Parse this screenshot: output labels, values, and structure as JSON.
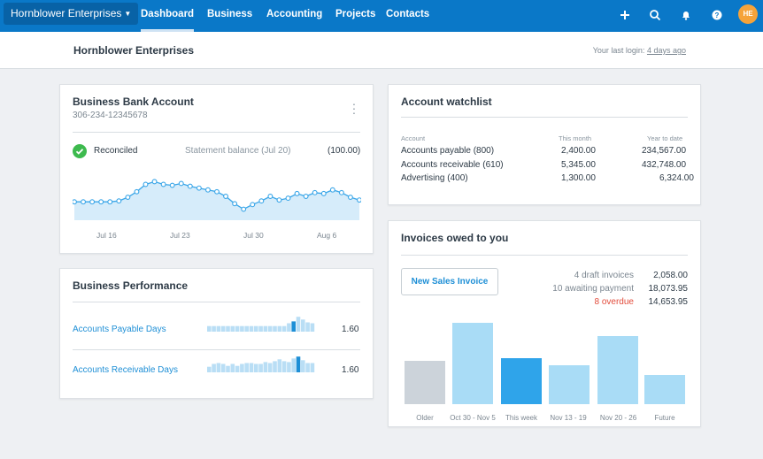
{
  "topnav": {
    "org_name": "Hornblower Enterprises",
    "items": [
      "Dashboard",
      "Business",
      "Accounting",
      "Projects",
      "Contacts"
    ],
    "active": "Dashboard",
    "avatar_initials": "HE",
    "icons": [
      "plus-icon",
      "search-icon",
      "bell-icon",
      "help-icon"
    ],
    "accent_color": "#0a78c8"
  },
  "subheader": {
    "title": "Hornblower Enterprises",
    "last_login_label": "Your last login:",
    "last_login_when": "4 days ago"
  },
  "bank": {
    "title": "Business Bank Account",
    "account_number": "306-234-12345678",
    "reconciled_label": "Reconciled",
    "statement_label": "Statement balance (Jul 20)",
    "statement_value": "(100.00)",
    "chart_data": {
      "type": "area",
      "x_ticks": [
        "Jul 16",
        "Jul 23",
        "Jul 30",
        "Aug 6"
      ],
      "values": [
        20,
        20,
        20,
        20,
        20,
        21,
        25,
        31,
        39,
        42,
        39,
        38,
        40,
        37,
        35,
        33,
        31,
        26,
        18,
        12,
        17,
        21,
        26,
        22,
        24,
        29,
        26,
        30,
        29,
        33,
        30,
        25,
        22
      ],
      "ylim": [
        0,
        52
      ]
    }
  },
  "performance": {
    "title": "Business Performance",
    "rows": [
      {
        "label": "Accounts Payable Days",
        "value": "1.60",
        "bars": [
          0.3,
          0.3,
          0.3,
          0.3,
          0.3,
          0.3,
          0.3,
          0.3,
          0.3,
          0.3,
          0.3,
          0.3,
          0.3,
          0.3,
          0.3,
          0.3,
          0.3,
          0.45,
          0.55,
          0.8,
          0.65,
          0.5,
          0.45
        ],
        "highlight": 18
      },
      {
        "label": "Accounts Receivable Days",
        "value": "1.60",
        "bars": [
          0.3,
          0.45,
          0.5,
          0.45,
          0.35,
          0.45,
          0.35,
          0.45,
          0.5,
          0.5,
          0.45,
          0.45,
          0.55,
          0.5,
          0.6,
          0.7,
          0.6,
          0.55,
          0.75,
          0.85,
          0.65,
          0.5,
          0.5
        ],
        "highlight": 19
      }
    ]
  },
  "watchlist": {
    "title": "Account watchlist",
    "columns": [
      "Account",
      "This month",
      "Year to date"
    ],
    "rows": [
      {
        "account": "Accounts payable (800)",
        "this_month": "2,400.00",
        "ytd": "234,567.00"
      },
      {
        "account": "Accounts receivable (610)",
        "this_month": "5,345.00",
        "ytd": "432,748.00"
      },
      {
        "account": "Advertising (400)",
        "this_month": "1,300.00",
        "ytd": "6,324.00"
      }
    ]
  },
  "invoices": {
    "title": "Invoices owed to you",
    "new_button": "New Sales Invoice",
    "summary": [
      {
        "label": "4 draft invoices",
        "value": "2,058.00",
        "overdue": false
      },
      {
        "label": "10 awaiting payment",
        "value": "18,073.95",
        "overdue": false
      },
      {
        "label": "8 overdue",
        "value": "14,653.95",
        "overdue": true
      }
    ],
    "chart_data": {
      "type": "bar",
      "categories": [
        "Older",
        "Oct 30 - Nov 5",
        "This week",
        "Nov 13 - 19",
        "Nov 20 - 26",
        "Future"
      ],
      "values": [
        49,
        92,
        52,
        44,
        77,
        33
      ],
      "ylim": [
        0,
        100
      ],
      "colors": [
        "#ccd3da",
        "#a9dcf6",
        "#2fa4ea",
        "#a9dcf6",
        "#a9dcf6",
        "#a9dcf6"
      ]
    }
  }
}
